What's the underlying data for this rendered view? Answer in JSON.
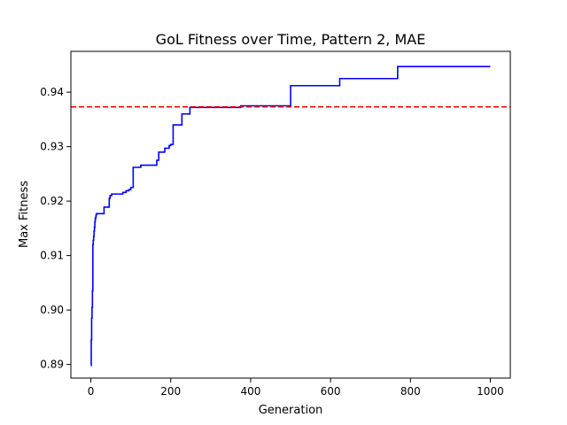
{
  "chart_data": {
    "type": "line",
    "title": "GoL Fitness over Time, Pattern 2, MAE",
    "xlabel": "Generation",
    "ylabel": "Max Fitness",
    "xlim": [
      -50,
      1050
    ],
    "ylim": [
      0.8875,
      0.9475
    ],
    "xticks": [
      0,
      200,
      400,
      600,
      800,
      1000
    ],
    "yticks": [
      0.89,
      0.9,
      0.91,
      0.92,
      0.93,
      0.94
    ],
    "xtick_labels": [
      "0",
      "200",
      "400",
      "600",
      "800",
      "1000"
    ],
    "ytick_labels": [
      "0.89",
      "0.90",
      "0.91",
      "0.92",
      "0.93",
      "0.94"
    ],
    "grid": false,
    "series": [
      {
        "color": "#0000ff",
        "style": "step",
        "x": [
          0,
          1,
          2,
          3,
          4,
          5,
          6,
          7,
          8,
          9,
          10,
          11,
          12,
          13,
          14,
          17,
          20,
          28,
          33,
          38,
          46,
          48,
          52,
          55,
          60,
          80,
          88,
          95,
          100,
          106,
          115,
          125,
          140,
          160,
          165,
          170,
          176,
          185,
          196,
          200,
          206,
          210,
          228,
          248,
          375,
          498,
          500,
          620,
          623,
          765,
          768,
          1000
        ],
        "y": [
          0.8898,
          0.8945,
          0.8985,
          0.9005,
          0.9035,
          0.912,
          0.9128,
          0.9135,
          0.9145,
          0.9152,
          0.9162,
          0.9168,
          0.917,
          0.9175,
          0.9177,
          0.9177,
          0.9177,
          0.9177,
          0.9189,
          0.9189,
          0.9205,
          0.921,
          0.9213,
          0.9213,
          0.9213,
          0.9216,
          0.9219,
          0.9221,
          0.9225,
          0.9262,
          0.9262,
          0.9266,
          0.9266,
          0.9266,
          0.9275,
          0.929,
          0.929,
          0.9297,
          0.9302,
          0.9304,
          0.934,
          0.934,
          0.936,
          0.9372,
          0.9375,
          0.9375,
          0.9412,
          0.9412,
          0.9425,
          0.9425,
          0.9447,
          0.9447
        ]
      }
    ],
    "reference_line": {
      "y": 0.9373,
      "color": "#ff0000",
      "style": "dashed"
    }
  }
}
